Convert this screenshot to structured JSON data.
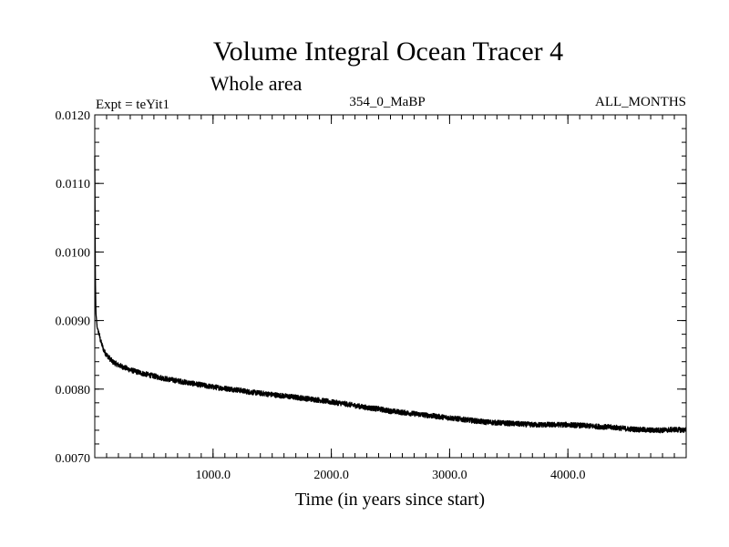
{
  "chart_data": {
    "type": "line",
    "title": "Volume Integral Ocean Tracer 4",
    "subtitle": "Whole area",
    "header_left": "Expt = teYit1",
    "header_center": "354_0_MaBP",
    "header_right": "ALL_MONTHS",
    "xlabel": "Time (in years since start)",
    "ylabel": "",
    "xlim": [
      0,
      5000
    ],
    "ylim": [
      0.007,
      0.012
    ],
    "x_ticks": [
      1000,
      2000,
      3000,
      4000
    ],
    "x_tick_labels": [
      "1000.0",
      "2000.0",
      "3000.0",
      "4000.0"
    ],
    "y_ticks": [
      0.007,
      0.008,
      0.009,
      0.01,
      0.011,
      0.012
    ],
    "y_tick_labels": [
      "0.0070",
      "0.0080",
      "0.0090",
      "0.0100",
      "0.0110",
      "0.0120"
    ],
    "grid": false,
    "series": [
      {
        "color": "#000000",
        "x": [
          0,
          5,
          10,
          20,
          30,
          50,
          80,
          100,
          150,
          200,
          300,
          400,
          500,
          600,
          700,
          800,
          900,
          1000,
          1100,
          1200,
          1300,
          1400,
          1500,
          1600,
          1700,
          1800,
          1900,
          2000,
          2100,
          2200,
          2300,
          2400,
          2500,
          2600,
          2700,
          2800,
          2900,
          3000,
          3100,
          3200,
          3300,
          3400,
          3500,
          3600,
          3700,
          3800,
          3900,
          4000,
          4100,
          4200,
          4300,
          4400,
          4500,
          4600,
          4700,
          4800,
          4900,
          5000
        ],
        "values": [
          0.0114,
          0.0096,
          0.0091,
          0.0089,
          0.00885,
          0.0087,
          0.00855,
          0.0085,
          0.0084,
          0.00835,
          0.00828,
          0.00823,
          0.00819,
          0.00815,
          0.00812,
          0.00809,
          0.00806,
          0.00803,
          0.00801,
          0.00799,
          0.00796,
          0.00794,
          0.00792,
          0.0079,
          0.00788,
          0.00786,
          0.00784,
          0.00781,
          0.00779,
          0.00776,
          0.00773,
          0.00771,
          0.00768,
          0.00766,
          0.00764,
          0.00762,
          0.0076,
          0.00758,
          0.00756,
          0.00754,
          0.00752,
          0.00751,
          0.0075,
          0.00749,
          0.00748,
          0.00748,
          0.00748,
          0.00748,
          0.00747,
          0.00746,
          0.00745,
          0.00744,
          0.00742,
          0.00741,
          0.0074,
          0.0074,
          0.00741,
          0.0074
        ]
      }
    ]
  }
}
